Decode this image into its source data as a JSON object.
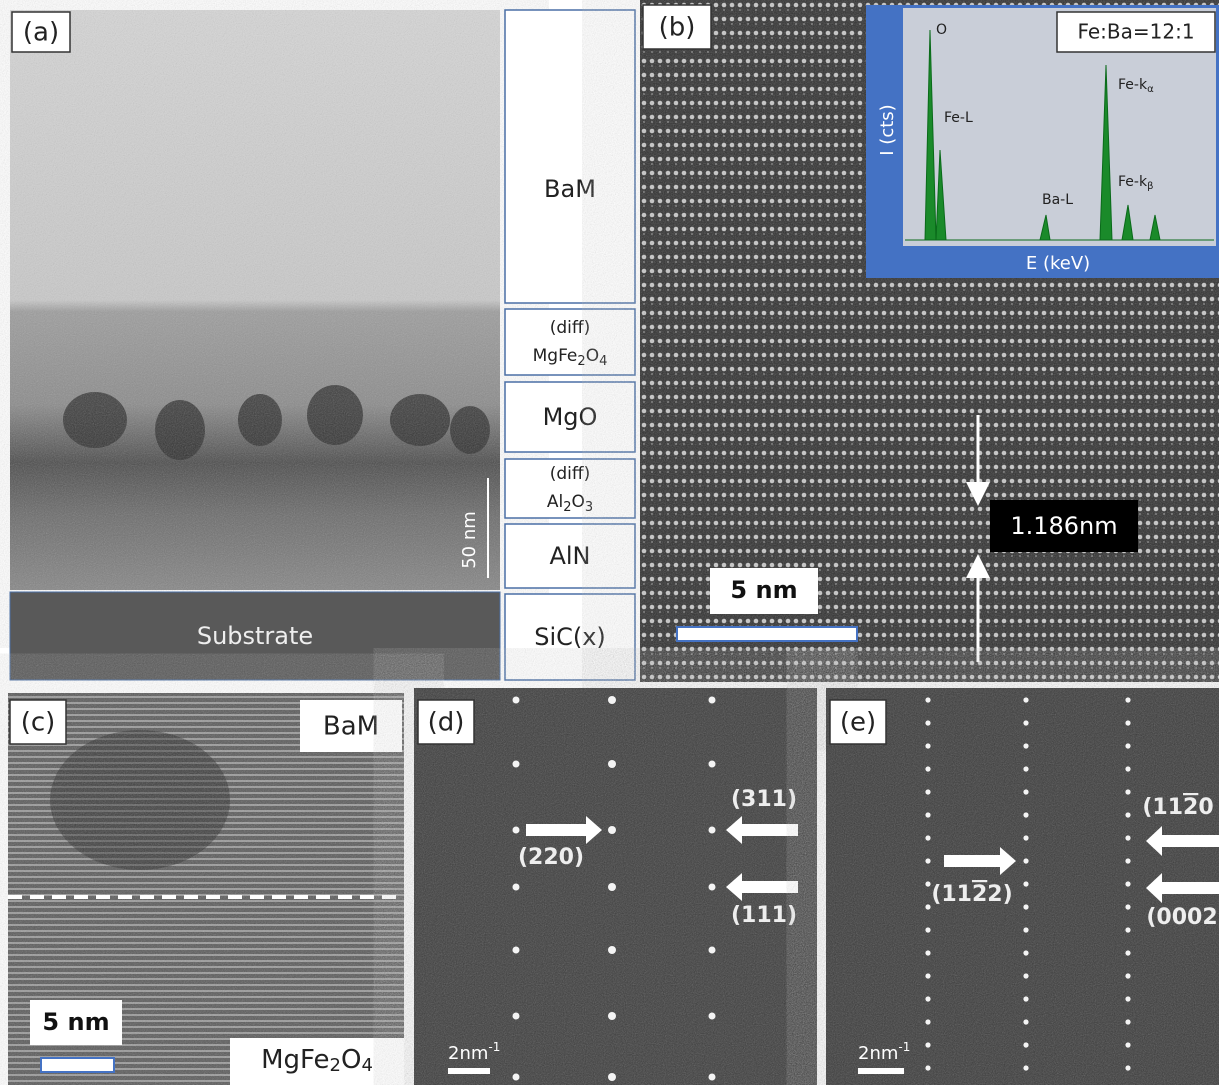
{
  "panel_a": {
    "label": "(a)",
    "scale_bar": "50 nm",
    "substrate": "Substrate",
    "layers": [
      {
        "text": "BaM"
      },
      {
        "note": "(diff)",
        "formula": [
          "MgFe",
          "2",
          "O",
          "4"
        ]
      },
      {
        "text": "MgO"
      },
      {
        "note": "(diff)",
        "formula": [
          "Al",
          "2",
          "O",
          "3"
        ]
      },
      {
        "text": "AlN"
      },
      {
        "text": "SiC(x)"
      }
    ]
  },
  "panel_b": {
    "label": "(b)",
    "spacing": "1.186nm",
    "scale_bar": "5 nm",
    "inset": {
      "ratio": "Fe:Ba=12:1",
      "y_label": "I (cts)",
      "x_label": "E (keV)",
      "peaks": [
        [
          "O"
        ],
        [
          "Fe-L"
        ],
        [
          "Ba-L"
        ],
        [
          "Fe-k",
          "α"
        ],
        [
          "Fe-k",
          "β"
        ]
      ]
    }
  },
  "panel_c": {
    "label": "(c)",
    "top_layer": "BaM",
    "bottom_layer": [
      "MgFe",
      "2",
      "O",
      "4"
    ],
    "scale_bar": "5 nm"
  },
  "panel_d": {
    "label": "(d)",
    "spots": [
      "(311)",
      "(220)",
      "(111)"
    ],
    "scale_bar": [
      "2nm",
      "-1"
    ]
  },
  "panel_e": {
    "label": "(e)",
    "spots": [
      [
        "(11",
        "2",
        "0"
      ],
      [
        "(11",
        "2",
        "2)"
      ],
      [
        "(0002"
      ]
    ],
    "scale_bar": [
      "2nm",
      "-1"
    ]
  }
}
